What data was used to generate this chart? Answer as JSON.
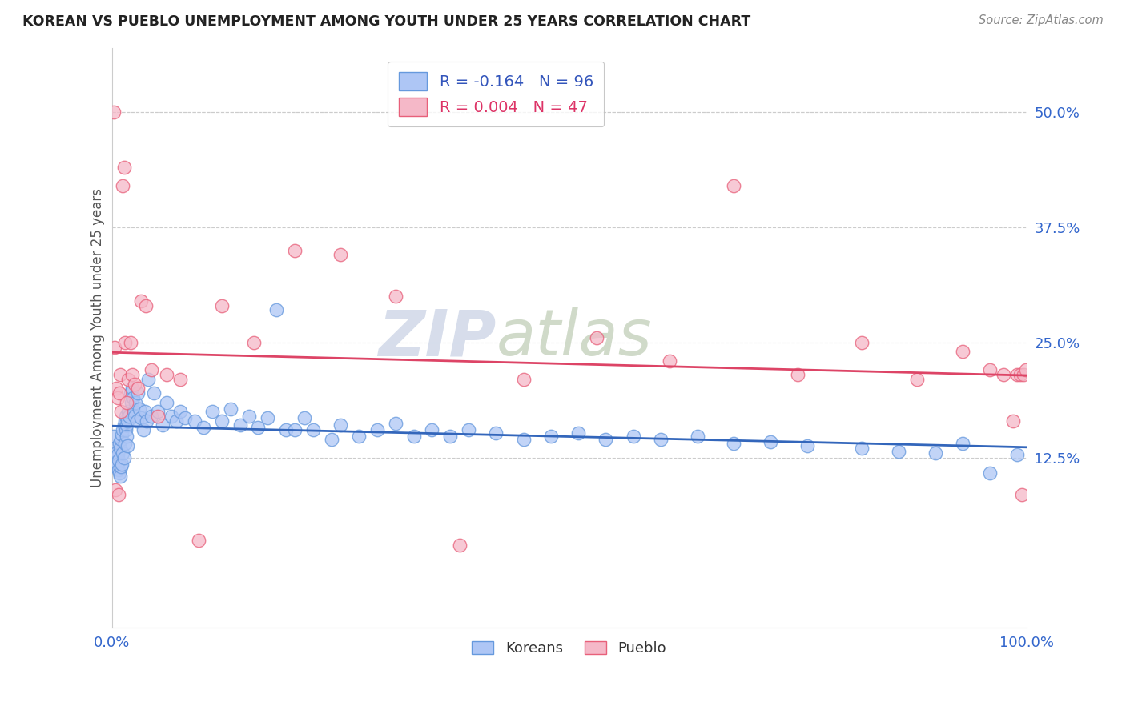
{
  "title": "KOREAN VS PUEBLO UNEMPLOYMENT AMONG YOUTH UNDER 25 YEARS CORRELATION CHART",
  "source": "Source: ZipAtlas.com",
  "ylabel": "Unemployment Among Youth under 25 years",
  "xlim": [
    0,
    1.0
  ],
  "ylim": [
    -0.06,
    0.57
  ],
  "ytick_labels": [
    "12.5%",
    "25.0%",
    "37.5%",
    "50.0%"
  ],
  "ytick_values": [
    0.125,
    0.25,
    0.375,
    0.5
  ],
  "korean_R": -0.164,
  "korean_N": 96,
  "pueblo_R": 0.004,
  "pueblo_N": 47,
  "korean_color": "#aec6f5",
  "pueblo_color": "#f5b8c8",
  "korean_edge_color": "#6699dd",
  "pueblo_edge_color": "#e8607a",
  "korean_line_color": "#3366bb",
  "pueblo_line_color": "#dd4466",
  "legend_korean_label": "Koreans",
  "legend_pueblo_label": "Pueblo",
  "watermark_zip": "ZIP",
  "watermark_atlas": "atlas",
  "koreans_x": [
    0.002,
    0.003,
    0.004,
    0.004,
    0.005,
    0.005,
    0.006,
    0.006,
    0.007,
    0.007,
    0.008,
    0.008,
    0.009,
    0.009,
    0.01,
    0.01,
    0.011,
    0.011,
    0.012,
    0.012,
    0.013,
    0.013,
    0.014,
    0.014,
    0.015,
    0.015,
    0.016,
    0.016,
    0.017,
    0.017,
    0.018,
    0.019,
    0.02,
    0.021,
    0.022,
    0.023,
    0.024,
    0.025,
    0.026,
    0.027,
    0.028,
    0.03,
    0.032,
    0.034,
    0.036,
    0.038,
    0.04,
    0.043,
    0.046,
    0.05,
    0.055,
    0.06,
    0.065,
    0.07,
    0.075,
    0.08,
    0.09,
    0.1,
    0.11,
    0.12,
    0.13,
    0.14,
    0.15,
    0.16,
    0.17,
    0.18,
    0.19,
    0.2,
    0.21,
    0.22,
    0.24,
    0.25,
    0.27,
    0.29,
    0.31,
    0.33,
    0.35,
    0.37,
    0.39,
    0.42,
    0.45,
    0.48,
    0.51,
    0.54,
    0.57,
    0.6,
    0.64,
    0.68,
    0.72,
    0.76,
    0.82,
    0.86,
    0.9,
    0.93,
    0.96,
    0.99
  ],
  "koreans_y": [
    0.148,
    0.135,
    0.125,
    0.115,
    0.13,
    0.12,
    0.128,
    0.118,
    0.122,
    0.112,
    0.14,
    0.108,
    0.135,
    0.105,
    0.145,
    0.115,
    0.15,
    0.118,
    0.155,
    0.13,
    0.16,
    0.125,
    0.165,
    0.14,
    0.155,
    0.17,
    0.16,
    0.148,
    0.165,
    0.138,
    0.175,
    0.17,
    0.195,
    0.185,
    0.2,
    0.19,
    0.175,
    0.17,
    0.185,
    0.165,
    0.195,
    0.178,
    0.168,
    0.155,
    0.175,
    0.165,
    0.21,
    0.17,
    0.195,
    0.175,
    0.16,
    0.185,
    0.17,
    0.165,
    0.175,
    0.168,
    0.165,
    0.158,
    0.175,
    0.165,
    0.178,
    0.16,
    0.17,
    0.158,
    0.168,
    0.285,
    0.155,
    0.155,
    0.168,
    0.155,
    0.145,
    0.16,
    0.148,
    0.155,
    0.162,
    0.148,
    0.155,
    0.148,
    0.155,
    0.152,
    0.145,
    0.148,
    0.152,
    0.145,
    0.148,
    0.145,
    0.148,
    0.14,
    0.142,
    0.138,
    0.135,
    0.132,
    0.13,
    0.14,
    0.108,
    0.128
  ],
  "pueblo_x": [
    0.002,
    0.003,
    0.004,
    0.005,
    0.006,
    0.007,
    0.008,
    0.009,
    0.01,
    0.012,
    0.013,
    0.014,
    0.016,
    0.018,
    0.02,
    0.022,
    0.025,
    0.028,
    0.032,
    0.037,
    0.043,
    0.05,
    0.06,
    0.075,
    0.095,
    0.12,
    0.155,
    0.2,
    0.25,
    0.31,
    0.38,
    0.45,
    0.53,
    0.61,
    0.68,
    0.75,
    0.82,
    0.88,
    0.93,
    0.96,
    0.975,
    0.985,
    0.99,
    0.993,
    0.995,
    0.997,
    0.999
  ],
  "pueblo_y": [
    0.5,
    0.245,
    0.09,
    0.2,
    0.19,
    0.085,
    0.195,
    0.215,
    0.175,
    0.42,
    0.44,
    0.25,
    0.185,
    0.21,
    0.25,
    0.215,
    0.205,
    0.2,
    0.295,
    0.29,
    0.22,
    0.17,
    0.215,
    0.21,
    0.035,
    0.29,
    0.25,
    0.35,
    0.345,
    0.3,
    0.03,
    0.21,
    0.255,
    0.23,
    0.42,
    0.215,
    0.25,
    0.21,
    0.24,
    0.22,
    0.215,
    0.165,
    0.215,
    0.215,
    0.085,
    0.215,
    0.22
  ]
}
